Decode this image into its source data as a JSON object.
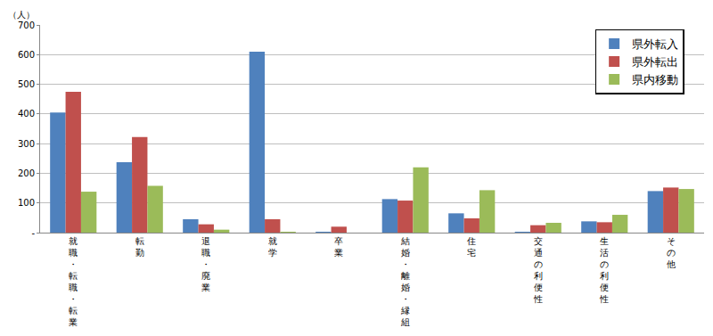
{
  "chart_data": {
    "type": "bar",
    "y_label": "（人）",
    "categories": [
      "就職・転職・転業",
      "転勤",
      "退職・廃業",
      "就学",
      "卒業",
      "結婚・離婚・縁組",
      "住宅",
      "交通の利便性",
      "生活の利便性",
      "その他"
    ],
    "series": [
      {
        "name": "県外転入",
        "color": "#4f81bd",
        "values": [
          405,
          237,
          45,
          610,
          3,
          113,
          65,
          3,
          38,
          140
        ]
      },
      {
        "name": "県外転出",
        "color": "#c0504d",
        "values": [
          475,
          322,
          28,
          45,
          20,
          108,
          48,
          25,
          35,
          152
        ]
      },
      {
        "name": "県内移動",
        "color": "#9bbb59",
        "values": [
          138,
          158,
          10,
          3,
          0,
          220,
          143,
          33,
          60,
          147
        ]
      }
    ],
    "ylim": [
      0,
      700
    ],
    "yticks": [
      {
        "value": 0,
        "label": "-"
      },
      100,
      200,
      300,
      400,
      500,
      600,
      700
    ],
    "grid": true,
    "legend": "top right"
  }
}
